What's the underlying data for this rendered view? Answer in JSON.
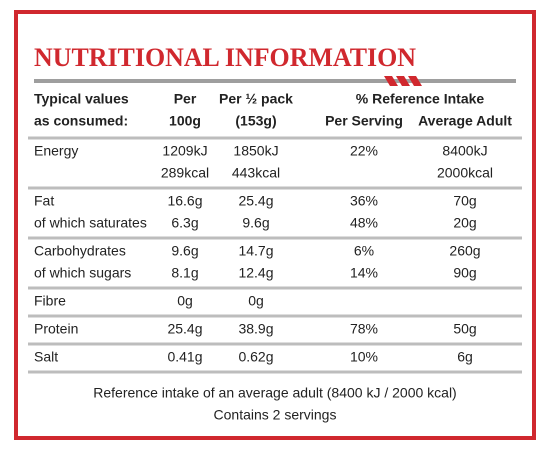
{
  "header": {
    "title": "NUTRITIONAL INFORMATION",
    "col_label": [
      "Typical values",
      "as consumed:"
    ],
    "col_100g": [
      "Per",
      "100g"
    ],
    "col_pack": [
      "Per ½ pack",
      "(153g)"
    ],
    "ri": "% Reference Intake",
    "col_serving": "Per Serving",
    "col_adult": "Average Adult"
  },
  "table": {
    "groups": [
      [
        [
          "Energy",
          [
            "1209kJ",
            "289kcal"
          ],
          [
            "1850kJ",
            "443kcal"
          ],
          "22%",
          [
            "8400kJ",
            "2000kcal"
          ]
        ]
      ],
      [
        [
          "Fat",
          "16.6g",
          "25.4g",
          "36%",
          "70g"
        ],
        [
          "of which saturates",
          "6.3g",
          "9.6g",
          "48%",
          "20g"
        ]
      ],
      [
        [
          "Carbohydrates",
          "9.6g",
          "14.7g",
          "6%",
          "260g"
        ],
        [
          "of which sugars",
          "8.1g",
          "12.4g",
          "14%",
          "90g"
        ]
      ],
      [
        [
          "Fibre",
          "0g",
          "0g"
        ]
      ],
      [
        [
          "Protein",
          "25.4g",
          "38.9g",
          "78%",
          "50g"
        ]
      ],
      [
        [
          "Salt",
          "0.41g",
          "0.62g",
          "10%",
          "6g"
        ]
      ]
    ]
  },
  "footer": [
    "Reference intake of an average adult (8400 kJ / 2000 kcal)",
    "Contains 2 servings"
  ]
}
